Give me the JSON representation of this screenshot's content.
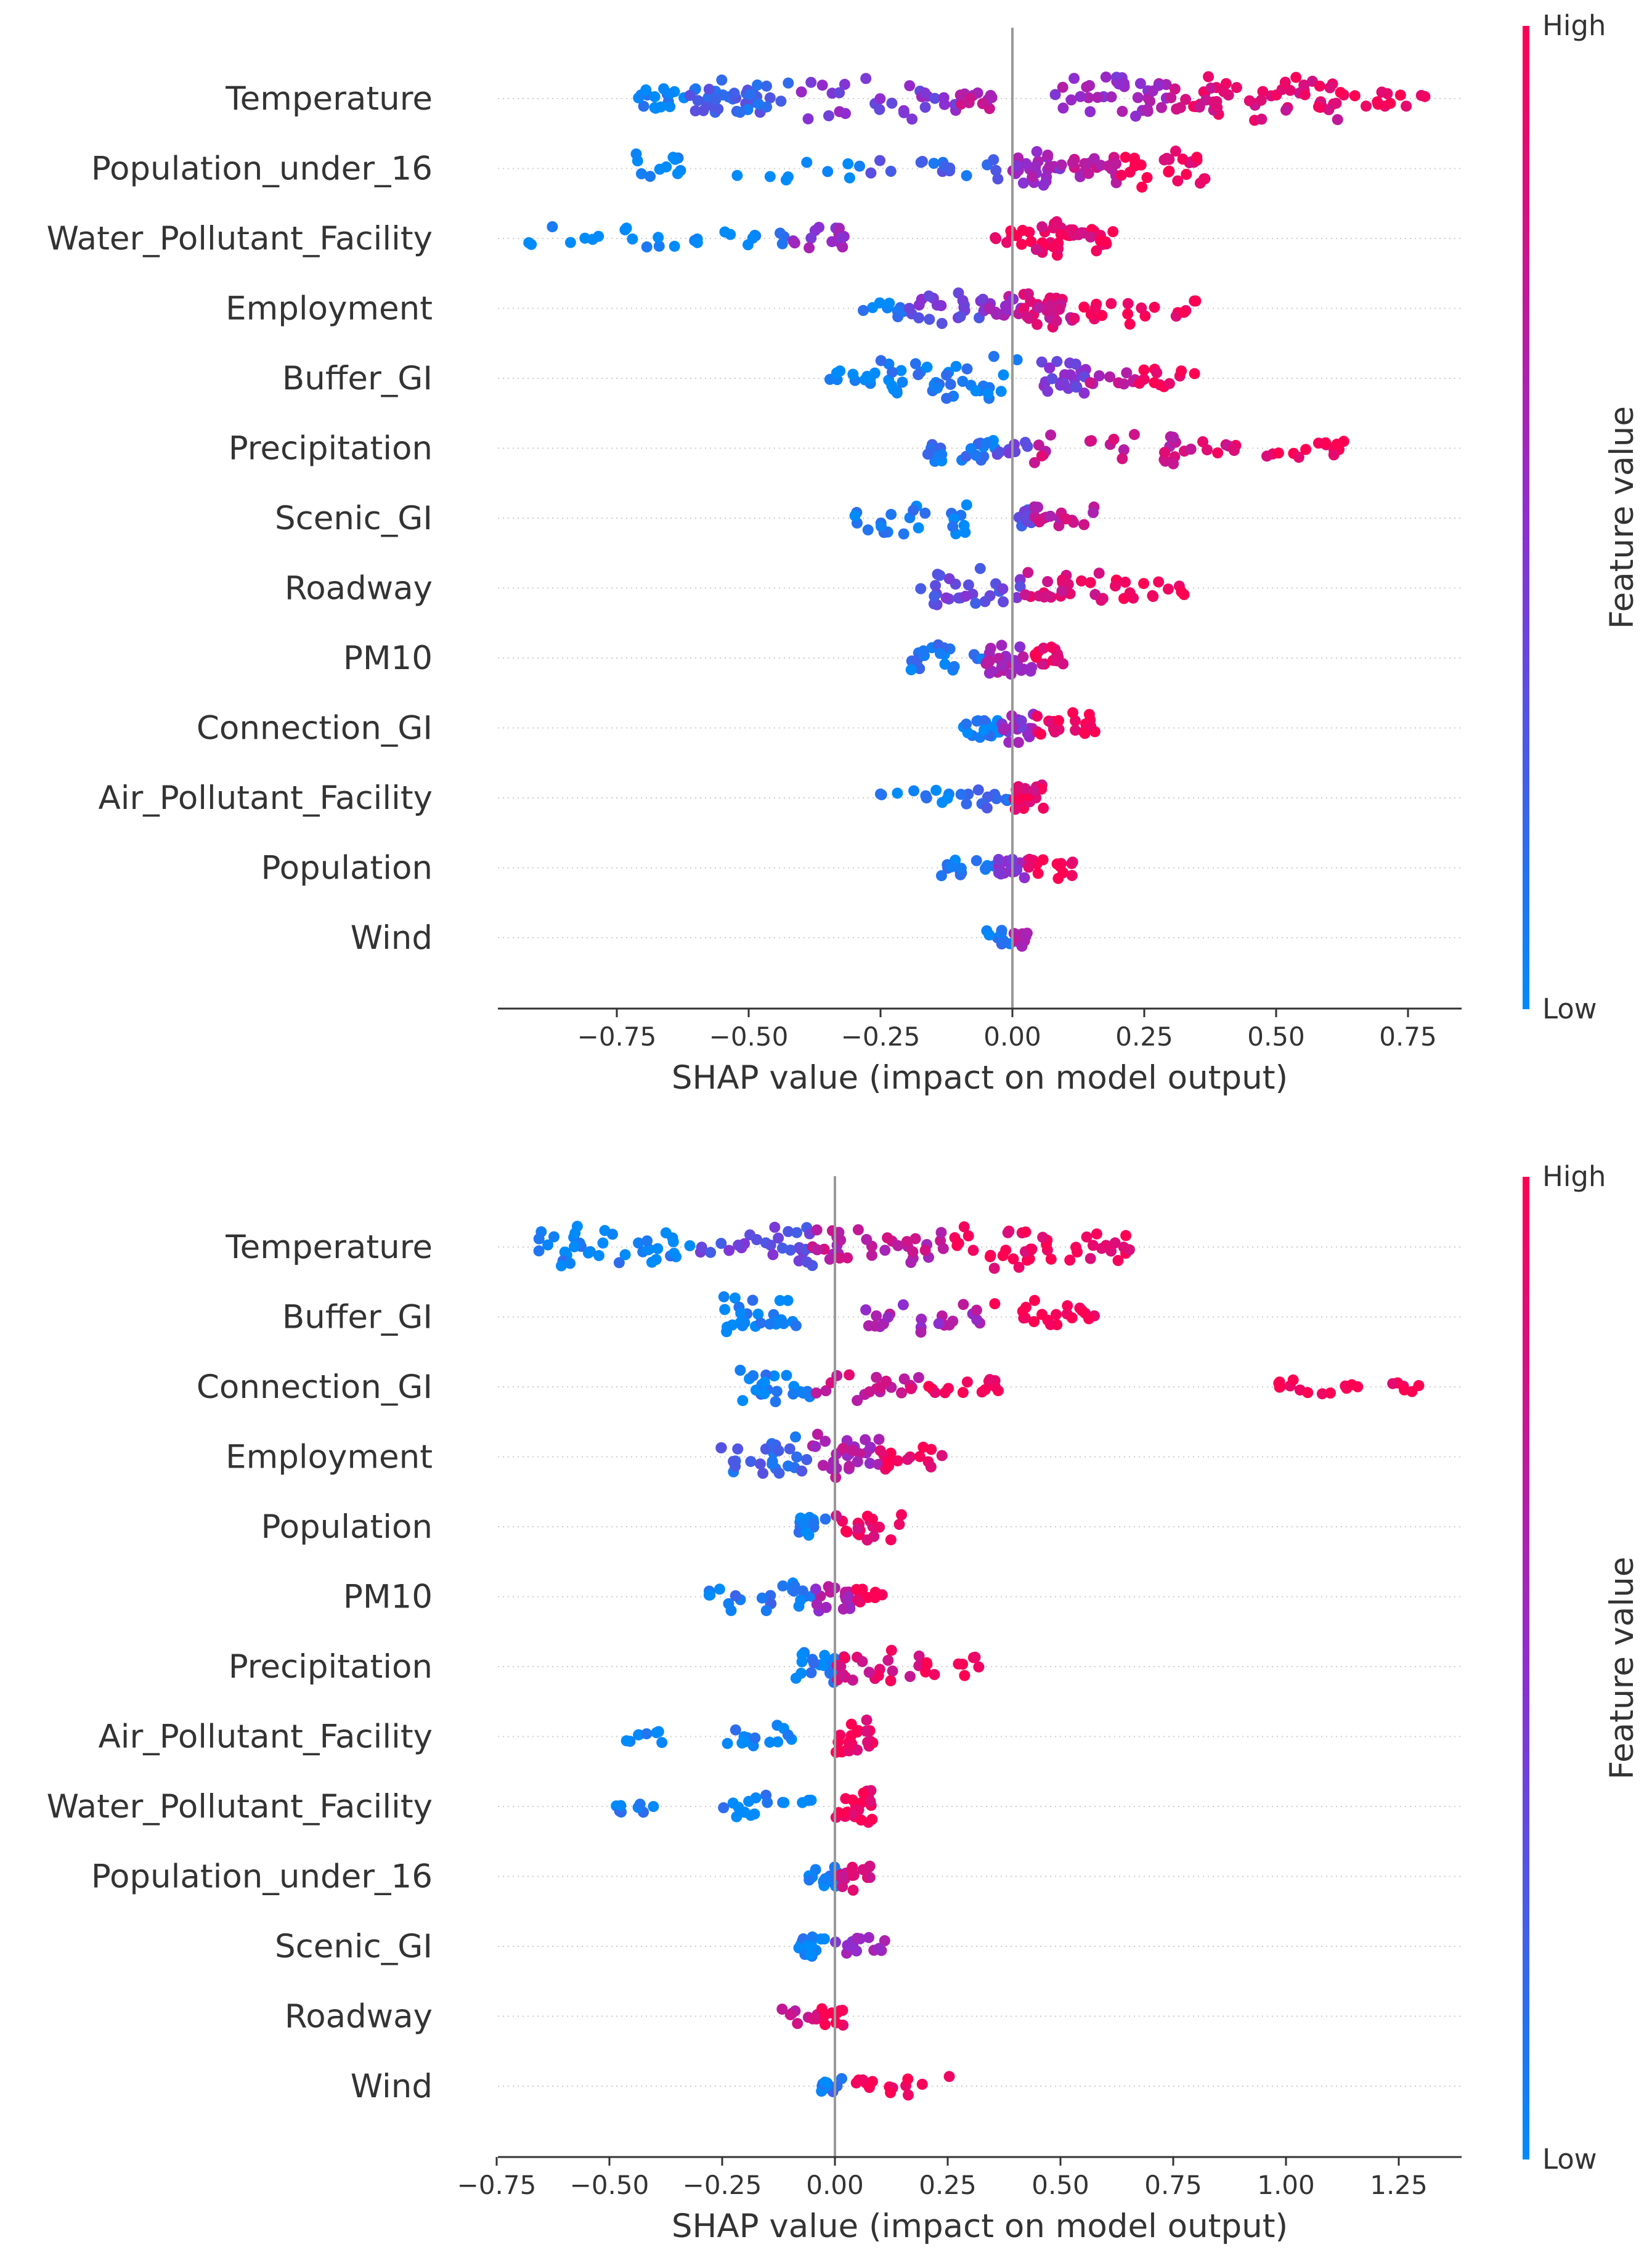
{
  "chart_data": [
    {
      "type": "scatter",
      "subtype": "shap-beeswarm",
      "title": "",
      "xlabel": "SHAP value (impact on model output)",
      "ylabel": "",
      "xlim": [
        -1.02,
        0.9
      ],
      "xticks": [
        -0.75,
        -0.5,
        -0.25,
        0.0,
        0.25,
        0.5,
        0.75
      ],
      "xtick_labels": [
        "−0.75",
        "−0.50",
        "−0.25",
        "0.00",
        "0.25",
        "0.50",
        "0.75"
      ],
      "colorbar": {
        "title": "Feature value",
        "high_label": "High",
        "low_label": "Low",
        "high_color": "#ff0052",
        "mid_color": "#8e2dd0",
        "low_color": "#008bfb"
      },
      "features": [
        {
          "name": "Temperature",
          "clusters": [
            [
              -0.72,
              -0.62,
              0.05,
              16
            ],
            [
              -0.62,
              -0.42,
              0.2,
              40
            ],
            [
              -0.42,
              -0.1,
              0.45,
              30
            ],
            [
              -0.1,
              -0.01,
              0.7,
              12
            ],
            [
              0.08,
              0.3,
              0.55,
              36
            ],
            [
              0.3,
              0.62,
              0.85,
              56
            ],
            [
              0.62,
              0.79,
              1.0,
              14
            ]
          ]
        },
        {
          "name": "Population_under_16",
          "clusters": [
            [
              -0.72,
              -0.28,
              0.0,
              20
            ],
            [
              -0.28,
              -0.02,
              0.2,
              16
            ],
            [
              0.0,
              0.1,
              0.55,
              26
            ],
            [
              0.1,
              0.2,
              0.7,
              20
            ],
            [
              0.2,
              0.38,
              0.95,
              26
            ]
          ]
        },
        {
          "name": "Water_Pollutant_Facility",
          "clusters": [
            [
              -0.93,
              -0.62,
              0.0,
              14
            ],
            [
              -0.62,
              -0.43,
              0.05,
              12
            ],
            [
              -0.43,
              -0.3,
              0.55,
              14
            ],
            [
              -0.04,
              0.04,
              0.95,
              10
            ],
            [
              0.04,
              0.16,
              0.9,
              30
            ],
            [
              0.16,
              0.2,
              1.0,
              6
            ]
          ]
        },
        {
          "name": "Employment",
          "clusters": [
            [
              -0.3,
              -0.2,
              0.05,
              10
            ],
            [
              -0.2,
              -0.05,
              0.4,
              22
            ],
            [
              -0.05,
              0.02,
              0.6,
              16
            ],
            [
              0.02,
              0.12,
              0.8,
              28
            ],
            [
              0.12,
              0.35,
              0.95,
              20
            ]
          ]
        },
        {
          "name": "Buffer_GI",
          "clusters": [
            [
              -0.36,
              -0.25,
              0.05,
              12
            ],
            [
              -0.25,
              0.02,
              0.05,
              40
            ],
            [
              0.05,
              0.14,
              0.45,
              24
            ],
            [
              0.14,
              0.24,
              0.7,
              10
            ],
            [
              0.24,
              0.35,
              1.0,
              12
            ]
          ]
        },
        {
          "name": "Precipitation",
          "clusters": [
            [
              -0.17,
              -0.03,
              0.1,
              22
            ],
            [
              -0.03,
              0.03,
              0.4,
              8
            ],
            [
              0.03,
              0.35,
              0.75,
              24
            ],
            [
              0.35,
              0.5,
              0.85,
              10
            ],
            [
              0.5,
              0.64,
              1.0,
              12
            ]
          ]
        },
        {
          "name": "Scenic_GI",
          "clusters": [
            [
              -0.3,
              -0.08,
              0.05,
              24
            ],
            [
              0.01,
              0.04,
              0.3,
              10
            ],
            [
              0.04,
              0.16,
              0.75,
              16
            ]
          ]
        },
        {
          "name": "Roadway",
          "clusters": [
            [
              -0.18,
              0.02,
              0.35,
              28
            ],
            [
              0.02,
              0.18,
              0.85,
              22
            ],
            [
              0.18,
              0.35,
              1.0,
              14
            ]
          ]
        },
        {
          "name": "PM10",
          "clusters": [
            [
              -0.2,
              -0.05,
              0.1,
              20
            ],
            [
              -0.05,
              0.04,
              0.6,
              24
            ],
            [
              0.04,
              0.1,
              0.9,
              14
            ]
          ]
        },
        {
          "name": "Connection_GI",
          "clusters": [
            [
              -0.1,
              -0.02,
              0.05,
              16
            ],
            [
              -0.02,
              0.04,
              0.5,
              18
            ],
            [
              0.04,
              0.16,
              0.95,
              20
            ]
          ]
        },
        {
          "name": "Air_Pollutant_Facility",
          "clusters": [
            [
              -0.26,
              -0.12,
              0.05,
              10
            ],
            [
              -0.1,
              0.0,
              0.15,
              12
            ],
            [
              0.0,
              0.06,
              0.9,
              22
            ]
          ]
        },
        {
          "name": "Population",
          "clusters": [
            [
              -0.14,
              -0.03,
              0.1,
              14
            ],
            [
              -0.03,
              0.03,
              0.5,
              16
            ],
            [
              0.03,
              0.12,
              1.0,
              14
            ]
          ]
        },
        {
          "name": "Wind",
          "clusters": [
            [
              -0.05,
              0.0,
              0.1,
              10
            ],
            [
              0.0,
              0.03,
              0.6,
              10
            ]
          ]
        }
      ]
    },
    {
      "type": "scatter",
      "subtype": "shap-beeswarm",
      "title": "",
      "xlabel": "SHAP value (impact on model output)",
      "ylabel": "",
      "xlim": [
        -0.75,
        1.4
      ],
      "xticks": [
        -0.75,
        -0.5,
        -0.25,
        0.0,
        0.25,
        0.5,
        0.75,
        1.0,
        1.25
      ],
      "xtick_labels": [
        "−0.75",
        "−0.50",
        "−0.25",
        "0.00",
        "0.25",
        "0.50",
        "0.75",
        "1.00",
        "1.25"
      ],
      "colorbar": {
        "title": "Feature value",
        "high_label": "High",
        "low_label": "Low",
        "high_color": "#ff0052",
        "mid_color": "#8e2dd0",
        "low_color": "#008bfb"
      },
      "features": [
        {
          "name": "Temperature",
          "clusters": [
            [
              -0.66,
              -0.3,
              0.05,
              40
            ],
            [
              -0.3,
              -0.05,
              0.35,
              30
            ],
            [
              -0.05,
              0.25,
              0.7,
              34
            ],
            [
              0.25,
              0.67,
              0.95,
              44
            ]
          ]
        },
        {
          "name": "Buffer_GI",
          "clusters": [
            [
              -0.25,
              -0.08,
              0.05,
              26
            ],
            [
              0.06,
              0.35,
              0.6,
              22
            ],
            [
              0.35,
              0.58,
              1.0,
              20
            ]
          ]
        },
        {
          "name": "Connection_GI",
          "clusters": [
            [
              -0.22,
              -0.05,
              0.05,
              22
            ],
            [
              -0.05,
              0.2,
              0.75,
              20
            ],
            [
              0.2,
              0.38,
              1.0,
              14
            ],
            [
              0.98,
              1.18,
              1.0,
              14
            ],
            [
              1.22,
              1.3,
              1.0,
              6
            ]
          ]
        },
        {
          "name": "Employment",
          "clusters": [
            [
              -0.26,
              -0.05,
              0.2,
              28
            ],
            [
              -0.05,
              0.1,
              0.65,
              30
            ],
            [
              0.1,
              0.24,
              0.95,
              16
            ]
          ]
        },
        {
          "name": "Population",
          "clusters": [
            [
              -0.08,
              -0.02,
              0.05,
              14
            ],
            [
              0.0,
              0.15,
              0.9,
              20
            ]
          ]
        },
        {
          "name": "PM10",
          "clusters": [
            [
              -0.28,
              -0.05,
              0.1,
              24
            ],
            [
              -0.05,
              0.04,
              0.6,
              18
            ],
            [
              0.04,
              0.11,
              0.95,
              12
            ]
          ]
        },
        {
          "name": "Precipitation",
          "clusters": [
            [
              -0.1,
              0.0,
              0.05,
              20
            ],
            [
              0.0,
              0.2,
              0.85,
              22
            ],
            [
              0.2,
              0.32,
              1.0,
              10
            ]
          ]
        },
        {
          "name": "Air_Pollutant_Facility",
          "clusters": [
            [
              -0.47,
              -0.37,
              0.05,
              8
            ],
            [
              -0.24,
              -0.05,
              0.05,
              14
            ],
            [
              0.0,
              0.09,
              0.95,
              22
            ]
          ]
        },
        {
          "name": "Water_Pollutant_Facility",
          "clusters": [
            [
              -0.49,
              -0.38,
              0.05,
              8
            ],
            [
              -0.25,
              -0.05,
              0.05,
              16
            ],
            [
              0.0,
              0.09,
              0.95,
              22
            ]
          ]
        },
        {
          "name": "Population_under_16",
          "clusters": [
            [
              -0.07,
              0.01,
              0.05,
              16
            ],
            [
              0.01,
              0.1,
              0.85,
              16
            ]
          ]
        },
        {
          "name": "Scenic_GI",
          "clusters": [
            [
              -0.08,
              0.0,
              0.05,
              16
            ],
            [
              0.0,
              0.12,
              0.55,
              14
            ]
          ]
        },
        {
          "name": "Roadway",
          "clusters": [
            [
              -0.12,
              -0.03,
              0.8,
              10
            ],
            [
              -0.03,
              0.02,
              1.0,
              10
            ]
          ]
        },
        {
          "name": "Wind",
          "clusters": [
            [
              -0.03,
              0.02,
              0.1,
              12
            ],
            [
              0.02,
              0.26,
              1.0,
              14
            ]
          ]
        }
      ]
    }
  ]
}
